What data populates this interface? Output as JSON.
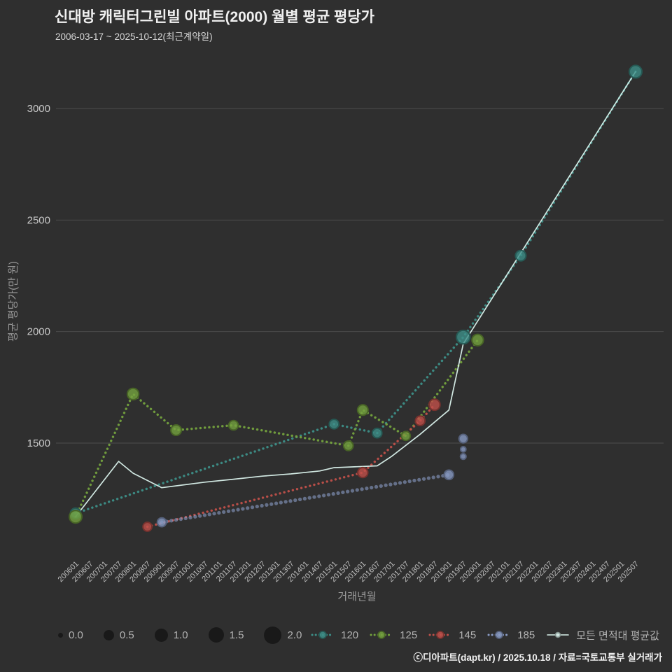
{
  "header": {
    "title": "신대방 캐릭터그린빌 아파트(2000) 월별 평균 평당가",
    "subtitle": "2006-03-17 ~ 2025-10-12(최근계약일)"
  },
  "footer": {
    "credit": "ⓒ디아파트(dapt.kr) / 2025.10.18 / 자료=국토교통부 실거래가"
  },
  "chart_data": {
    "type": "scatter",
    "title": "신대방 캐릭터그린빌 아파트(2000) 월별 평균 평당가",
    "subtitle": "2006-03-17 ~ 2025-10-12(최근계약일)",
    "xlabel": "거래년월",
    "ylabel": "평균 평당가(만 원)",
    "ylim": [
      1050,
      3250
    ],
    "yticks": [
      1500,
      2000,
      2500,
      3000
    ],
    "x_ticks": [
      "200601",
      "200607",
      "200701",
      "200707",
      "200801",
      "200807",
      "200901",
      "200907",
      "201001",
      "201007",
      "201101",
      "201107",
      "201201",
      "201207",
      "201301",
      "201307",
      "201401",
      "201407",
      "201501",
      "201507",
      "201601",
      "201607",
      "201701",
      "201707",
      "201801",
      "201807",
      "201901",
      "201907",
      "202001",
      "202007",
      "202101",
      "202107",
      "202201",
      "202207",
      "202301",
      "202307",
      "202401",
      "202407",
      "202501",
      "202507"
    ],
    "grid": "horizontal",
    "legend_position": "bottom",
    "series": [
      {
        "name": "120",
        "color": "#3d8f88",
        "line": "dotted",
        "points": [
          {
            "x": "200601",
            "y": 1185,
            "s": 1.2
          },
          {
            "x": "201501",
            "y": 1585,
            "s": 1.0
          },
          {
            "x": "201607",
            "y": 1545,
            "s": 1.0
          },
          {
            "x": "201907",
            "y": 1975,
            "s": 1.8
          },
          {
            "x": "202107",
            "y": 2340,
            "s": 1.2
          },
          {
            "x": "202507",
            "y": 3165,
            "s": 1.6
          }
        ]
      },
      {
        "name": "125",
        "color": "#74a23e",
        "line": "dotted",
        "points": [
          {
            "x": "200601",
            "y": 1170,
            "s": 1.6
          },
          {
            "x": "200801",
            "y": 1720,
            "s": 1.4
          },
          {
            "x": "200907",
            "y": 1558,
            "s": 1.2
          },
          {
            "x": "201107",
            "y": 1580,
            "s": 1.0
          },
          {
            "x": "201507",
            "y": 1488,
            "s": 1.0
          },
          {
            "x": "201601",
            "y": 1648,
            "s": 1.2
          },
          {
            "x": "201707",
            "y": 1532,
            "s": 0.9
          },
          {
            "x": "202001",
            "y": 1962,
            "s": 1.4
          }
        ]
      },
      {
        "name": "145",
        "color": "#c0504a",
        "line": "dotted",
        "points": [
          {
            "x": "200807",
            "y": 1125,
            "s": 0.9
          },
          {
            "x": "201601",
            "y": 1368,
            "s": 1.1
          },
          {
            "x": "201801",
            "y": 1600,
            "s": 1.0
          },
          {
            "x": "201807",
            "y": 1672,
            "s": 1.3
          }
        ]
      },
      {
        "name": "185",
        "color": "#8a9cc6",
        "line": "thick-dotted",
        "points": [
          {
            "x": "200901",
            "y": 1145,
            "s": 0.9
          },
          {
            "x": "201901",
            "y": 1358,
            "s": 1.0
          },
          {
            "x": "201907",
            "y": 1440,
            "s": 0.25
          },
          {
            "x": "201907",
            "y": 1472,
            "s": 0.2
          },
          {
            "x": "201907",
            "y": 1520,
            "s": 0.8
          }
        ],
        "line_points": [
          {
            "x": "200901",
            "y": 1145
          },
          {
            "x": "201901",
            "y": 1358
          }
        ]
      },
      {
        "name": "모든 면적대 평균값",
        "color": "#daf2ec",
        "line": "solid",
        "points": [],
        "line_points": [
          {
            "x": "200601",
            "y": 1170
          },
          {
            "x": "200707",
            "y": 1418
          },
          {
            "x": "200801",
            "y": 1365
          },
          {
            "x": "200901",
            "y": 1300
          },
          {
            "x": "201007",
            "y": 1325
          },
          {
            "x": "201107",
            "y": 1338
          },
          {
            "x": "201207",
            "y": 1352
          },
          {
            "x": "201307",
            "y": 1362
          },
          {
            "x": "201407",
            "y": 1375
          },
          {
            "x": "201501",
            "y": 1390
          },
          {
            "x": "201607",
            "y": 1398
          },
          {
            "x": "201701",
            "y": 1440
          },
          {
            "x": "201801",
            "y": 1540
          },
          {
            "x": "201901",
            "y": 1648
          },
          {
            "x": "201907",
            "y": 1945
          },
          {
            "x": "202507",
            "y": 3165
          }
        ]
      }
    ],
    "size_legend": {
      "labels": [
        "0.0",
        "0.5",
        "1.0",
        "1.5",
        "2.0"
      ]
    }
  }
}
